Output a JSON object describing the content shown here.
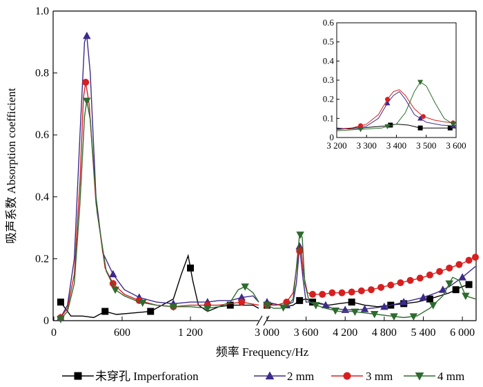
{
  "chart_data": [
    {
      "type": "line",
      "xlabel": "频率 Frequency/Hz",
      "ylabel": "吸声系数 Absorption coefficient",
      "ylim": [
        0,
        1.0
      ],
      "yticks": [
        "0",
        "0.2",
        "0.4",
        "0.6",
        "0.8",
        "1.0"
      ],
      "ytick_values": [
        0,
        0.2,
        0.4,
        0.6,
        0.8,
        1.0
      ],
      "x_axis_break": true,
      "segments": [
        {
          "xlim": [
            0,
            1800
          ],
          "xticks": [
            "0",
            "600",
            "1 200"
          ],
          "xtick_values": [
            0,
            600,
            1200
          ]
        },
        {
          "xlim": [
            3000,
            6200
          ],
          "xticks": [
            "3 000",
            "3 600",
            "4 200",
            "4 800",
            "5 400",
            "6 000"
          ],
          "xtick_values": [
            3000,
            3600,
            4200,
            4800,
            5400,
            6000
          ]
        }
      ],
      "legend_position": "bottom",
      "series": [
        {
          "name": "未穿孔 Imperforation",
          "color": "#000000",
          "marker": "square",
          "points": [
            [
              60,
              0.06
            ],
            [
              150,
              0.015
            ],
            [
              250,
              0.015
            ],
            [
              350,
              0.01
            ],
            [
              450,
              0.03
            ],
            [
              550,
              0.02
            ],
            [
              700,
              0.025
            ],
            [
              850,
              0.03
            ],
            [
              950,
              0.05
            ],
            [
              1050,
              0.07
            ],
            [
              1120,
              0.15
            ],
            [
              1180,
              0.21
            ],
            [
              1220,
              0.13
            ],
            [
              1270,
              0.05
            ],
            [
              1350,
              0.03
            ],
            [
              1450,
              0.045
            ],
            [
              1550,
              0.05
            ],
            [
              1650,
              0.05
            ],
            [
              1750,
              0.05
            ],
            [
              1800,
              0.04
            ],
            [
              3000,
              0.05
            ],
            [
              3100,
              0.055
            ],
            [
              3200,
              0.05
            ],
            [
              3300,
              0.045
            ],
            [
              3400,
              0.05
            ],
            [
              3500,
              0.065
            ],
            [
              3600,
              0.07
            ],
            [
              3700,
              0.06
            ],
            [
              3800,
              0.055
            ],
            [
              3950,
              0.05
            ],
            [
              4100,
              0.055
            ],
            [
              4300,
              0.06
            ],
            [
              4500,
              0.05
            ],
            [
              4700,
              0.045
            ],
            [
              4900,
              0.05
            ],
            [
              5100,
              0.055
            ],
            [
              5300,
              0.06
            ],
            [
              5500,
              0.07
            ],
            [
              5800,
              0.09
            ],
            [
              6000,
              0.11
            ],
            [
              6150,
              0.12
            ]
          ],
          "marker_x": [
            60,
            450,
            850,
            1200,
            1550,
            3000,
            3500,
            3700,
            4300,
            4900,
            5100,
            5500,
            5900,
            6100
          ]
        },
        {
          "name": "2 mm",
          "color": "#3d2a8c",
          "marker": "triangle-up",
          "points": [
            [
              60,
              0.01
            ],
            [
              120,
              0.05
            ],
            [
              180,
              0.2
            ],
            [
              230,
              0.6
            ],
            [
              270,
              0.9
            ],
            [
              290,
              0.92
            ],
            [
              320,
              0.8
            ],
            [
              370,
              0.4
            ],
            [
              430,
              0.22
            ],
            [
              520,
              0.15
            ],
            [
              620,
              0.1
            ],
            [
              750,
              0.075
            ],
            [
              900,
              0.06
            ],
            [
              1050,
              0.055
            ],
            [
              1200,
              0.06
            ],
            [
              1350,
              0.06
            ],
            [
              1450,
              0.065
            ],
            [
              1550,
              0.065
            ],
            [
              1650,
              0.075
            ],
            [
              1750,
              0.08
            ],
            [
              1800,
              0.06
            ],
            [
              3000,
              0.06
            ],
            [
              3100,
              0.055
            ],
            [
              3200,
              0.05
            ],
            [
              3300,
              0.05
            ],
            [
              3400,
              0.06
            ],
            [
              3450,
              0.12
            ],
            [
              3500,
              0.24
            ],
            [
              3550,
              0.14
            ],
            [
              3600,
              0.06
            ],
            [
              3700,
              0.06
            ],
            [
              3850,
              0.055
            ],
            [
              4000,
              0.04
            ],
            [
              4200,
              0.035
            ],
            [
              4400,
              0.035
            ],
            [
              4600,
              0.04
            ],
            [
              4800,
              0.045
            ],
            [
              5000,
              0.055
            ],
            [
              5200,
              0.065
            ],
            [
              5400,
              0.075
            ],
            [
              5600,
              0.09
            ],
            [
              5800,
              0.11
            ],
            [
              6000,
              0.14
            ],
            [
              6200,
              0.175
            ]
          ],
          "marker_x": [
            60,
            290,
            520,
            750,
            1050,
            1350,
            1650,
            3000,
            3300,
            3500,
            3900,
            4200,
            4500,
            4800,
            5100,
            5400,
            5700,
            6000
          ]
        },
        {
          "name": "3 mm",
          "color": "#d62020",
          "marker": "circle",
          "points": [
            [
              60,
              0.01
            ],
            [
              120,
              0.04
            ],
            [
              180,
              0.15
            ],
            [
              230,
              0.45
            ],
            [
              260,
              0.72
            ],
            [
              280,
              0.77
            ],
            [
              310,
              0.7
            ],
            [
              370,
              0.38
            ],
            [
              450,
              0.17
            ],
            [
              520,
              0.12
            ],
            [
              620,
              0.085
            ],
            [
              750,
              0.065
            ],
            [
              900,
              0.05
            ],
            [
              1050,
              0.045
            ],
            [
              1200,
              0.05
            ],
            [
              1350,
              0.05
            ],
            [
              1450,
              0.05
            ],
            [
              1550,
              0.055
            ],
            [
              1650,
              0.06
            ],
            [
              1800,
              0.05
            ],
            [
              3000,
              0.05
            ],
            [
              3150,
              0.05
            ],
            [
              3300,
              0.06
            ],
            [
              3400,
              0.09
            ],
            [
              3480,
              0.21
            ],
            [
              3520,
              0.24
            ],
            [
              3560,
              0.15
            ],
            [
              3620,
              0.09
            ],
            [
              3700,
              0.085
            ],
            [
              3850,
              0.085
            ],
            [
              4000,
              0.09
            ],
            [
              4200,
              0.09
            ],
            [
              4400,
              0.095
            ],
            [
              4600,
              0.1
            ],
            [
              4800,
              0.11
            ],
            [
              5000,
              0.12
            ],
            [
              5200,
              0.13
            ],
            [
              5400,
              0.14
            ],
            [
              5600,
              0.155
            ],
            [
              5800,
              0.17
            ],
            [
              6000,
              0.185
            ],
            [
              6200,
              0.205
            ]
          ],
          "marker_x": [
            60,
            280,
            520,
            750,
            1050,
            1350,
            1650,
            3000,
            3300,
            3500,
            3700,
            3850,
            4000,
            4150,
            4300,
            4450,
            4600,
            4750,
            4900,
            5050,
            5200,
            5350,
            5500,
            5650,
            5800,
            5950,
            6100,
            6200
          ]
        },
        {
          "name": "4 mm",
          "color": "#2e6b2e",
          "marker": "triangle-down",
          "points": [
            [
              60,
              0.005
            ],
            [
              120,
              0.03
            ],
            [
              180,
              0.12
            ],
            [
              230,
              0.38
            ],
            [
              270,
              0.66
            ],
            [
              290,
              0.71
            ],
            [
              320,
              0.65
            ],
            [
              380,
              0.35
            ],
            [
              460,
              0.16
            ],
            [
              540,
              0.1
            ],
            [
              620,
              0.08
            ],
            [
              750,
              0.06
            ],
            [
              900,
              0.05
            ],
            [
              1050,
              0.045
            ],
            [
              1200,
              0.045
            ],
            [
              1350,
              0.04
            ],
            [
              1450,
              0.045
            ],
            [
              1550,
              0.06
            ],
            [
              1620,
              0.1
            ],
            [
              1680,
              0.11
            ],
            [
              1750,
              0.09
            ],
            [
              1800,
              0.06
            ],
            [
              3000,
              0.05
            ],
            [
              3100,
              0.04
            ],
            [
              3200,
              0.04
            ],
            [
              3300,
              0.045
            ],
            [
              3400,
              0.07
            ],
            [
              3450,
              0.17
            ],
            [
              3500,
              0.28
            ],
            [
              3540,
              0.27
            ],
            [
              3580,
              0.12
            ],
            [
              3650,
              0.06
            ],
            [
              3750,
              0.05
            ],
            [
              3900,
              0.04
            ],
            [
              4100,
              0.03
            ],
            [
              4300,
              0.03
            ],
            [
              4500,
              0.025
            ],
            [
              4700,
              0.02
            ],
            [
              4900,
              0.015
            ],
            [
              5100,
              0.01
            ],
            [
              5300,
              0.015
            ],
            [
              5500,
              0.04
            ],
            [
              5700,
              0.08
            ],
            [
              5850,
              0.14
            ],
            [
              5950,
              0.13
            ],
            [
              6050,
              0.08
            ],
            [
              6200,
              0.07
            ]
          ],
          "marker_x": [
            60,
            290,
            540,
            780,
            1050,
            1350,
            1680,
            3000,
            3250,
            3510,
            3750,
            4050,
            4350,
            4650,
            4950,
            5250,
            5550,
            5800,
            6050
          ]
        }
      ]
    },
    {
      "type": "line",
      "inset": true,
      "xlim": [
        3200,
        3600
      ],
      "ylim": [
        0,
        0.6
      ],
      "xticks": [
        "3 200",
        "3 300",
        "3 400",
        "3 500",
        "3 600"
      ],
      "xtick_values": [
        3200,
        3300,
        3400,
        3500,
        3600
      ],
      "yticks": [
        "0",
        "0.1",
        "0.2",
        "0.3",
        "0.4",
        "0.5",
        "0.6"
      ],
      "ytick_values": [
        0,
        0.1,
        0.2,
        0.3,
        0.4,
        0.5,
        0.6
      ],
      "series": [
        {
          "color": "#000000",
          "marker": "square",
          "points": [
            [
              3200,
              0.05
            ],
            [
              3240,
              0.045
            ],
            [
              3280,
              0.05
            ],
            [
              3320,
              0.055
            ],
            [
              3360,
              0.06
            ],
            [
              3380,
              0.065
            ],
            [
              3400,
              0.07
            ],
            [
              3440,
              0.065
            ],
            [
              3480,
              0.05
            ],
            [
              3520,
              0.05
            ],
            [
              3560,
              0.05
            ],
            [
              3600,
              0.05
            ]
          ],
          "marker_x": [
            3380,
            3480,
            3580
          ]
        },
        {
          "color": "#3d2a8c",
          "marker": "triangle-up",
          "points": [
            [
              3200,
              0.045
            ],
            [
              3250,
              0.05
            ],
            [
              3300,
              0.06
            ],
            [
              3340,
              0.1
            ],
            [
              3370,
              0.18
            ],
            [
              3390,
              0.22
            ],
            [
              3410,
              0.24
            ],
            [
              3430,
              0.2
            ],
            [
              3460,
              0.12
            ],
            [
              3500,
              0.08
            ],
            [
              3550,
              0.065
            ],
            [
              3600,
              0.06
            ]
          ],
          "marker_x": [
            3280,
            3370,
            3480,
            3590
          ]
        },
        {
          "color": "#d62020",
          "marker": "circle",
          "points": [
            [
              3200,
              0.04
            ],
            [
              3250,
              0.05
            ],
            [
              3300,
              0.07
            ],
            [
              3340,
              0.12
            ],
            [
              3370,
              0.2
            ],
            [
              3390,
              0.24
            ],
            [
              3410,
              0.25
            ],
            [
              3430,
              0.22
            ],
            [
              3460,
              0.15
            ],
            [
              3490,
              0.11
            ],
            [
              3530,
              0.09
            ],
            [
              3570,
              0.08
            ],
            [
              3600,
              0.075
            ]
          ],
          "marker_x": [
            3280,
            3370,
            3490,
            3590
          ]
        },
        {
          "color": "#2e6b2e",
          "marker": "triangle-down",
          "points": [
            [
              3200,
              0.035
            ],
            [
              3250,
              0.04
            ],
            [
              3300,
              0.045
            ],
            [
              3350,
              0.05
            ],
            [
              3400,
              0.07
            ],
            [
              3430,
              0.13
            ],
            [
              3460,
              0.24
            ],
            [
              3480,
              0.29
            ],
            [
              3500,
              0.27
            ],
            [
              3530,
              0.18
            ],
            [
              3560,
              0.1
            ],
            [
              3600,
              0.06
            ]
          ],
          "marker_x": [
            3280,
            3370,
            3480,
            3590
          ]
        }
      ]
    }
  ]
}
